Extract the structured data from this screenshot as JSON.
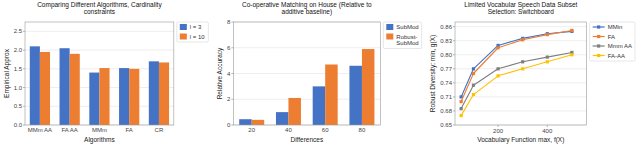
{
  "chart_data": [
    {
      "type": "bar",
      "title": "Comparing Different Algorithms, Cardinality\nconstraints",
      "xlabel": "Algorithms",
      "ylabel": "Empirical Approx",
      "categories": [
        "MMm AA",
        "FA AA",
        "MMm",
        "FA",
        "CR"
      ],
      "series": [
        {
          "name": "l = 3",
          "color": "#4472C4",
          "values": [
            2.1,
            2.05,
            1.4,
            1.52,
            1.7
          ]
        },
        {
          "name": "l = 10",
          "color": "#ED7D31",
          "values": [
            1.95,
            1.9,
            1.52,
            1.5,
            1.67
          ]
        }
      ],
      "ylim": [
        0,
        2.75
      ],
      "yticks": [
        {
          "value": 0,
          "label": "0.0"
        },
        0.5,
        {
          "value": 1,
          "label": "1.0"
        },
        1.5,
        {
          "value": 2,
          "label": "2.0"
        },
        2.5
      ],
      "grid": true,
      "legend": "right"
    },
    {
      "type": "bar",
      "title": "Co-operative Matching on House (Relative to\nadditive baseline)",
      "xlabel": "Differences",
      "ylabel": "Relative Accuracy",
      "categories": [
        "20",
        "40",
        "60",
        "80"
      ],
      "series": [
        {
          "name": "SubMod",
          "color": "#4472C4",
          "values": [
            0.45,
            1.0,
            3.0,
            4.6
          ]
        },
        {
          "name": "Robust-\nSubMod",
          "color": "#ED7D31",
          "values": [
            0.4,
            2.1,
            4.7,
            5.9
          ]
        }
      ],
      "ylim": [
        0,
        8
      ],
      "yticks": [
        0,
        2,
        4,
        6,
        8
      ],
      "grid": true,
      "legend": "right"
    },
    {
      "type": "line",
      "title": "Limited Vocabular Speech Data Subset\nSelection: Switchboard",
      "xlabel": "Vocabulary Function max, f(X)",
      "ylabel": "Robust Diversity: min, g(X)",
      "x": [
        50,
        100,
        200,
        300,
        400,
        500
      ],
      "series": [
        {
          "name": "MMin",
          "color": "#4472C4",
          "values": [
            0.71,
            0.77,
            0.82,
            0.835,
            0.845,
            0.85
          ]
        },
        {
          "name": "FA",
          "color": "#ED7D31",
          "values": [
            0.7,
            0.76,
            0.815,
            0.832,
            0.843,
            0.852
          ]
        },
        {
          "name": "Mmm AA",
          "color": "#7F7F7F",
          "values": [
            0.685,
            0.735,
            0.77,
            0.785,
            0.795,
            0.805
          ]
        },
        {
          "name": "FA-AA",
          "color": "#FFC000",
          "values": [
            0.67,
            0.715,
            0.755,
            0.77,
            0.785,
            0.8
          ]
        }
      ],
      "ylim": [
        0.65,
        0.87
      ],
      "yticks": [
        0.65,
        0.68,
        0.71,
        0.74,
        0.77,
        {
          "value": 0.8,
          "label": "0.80"
        },
        0.83,
        0.86
      ],
      "xlim": [
        25,
        560
      ],
      "xticks": [
        200,
        400
      ],
      "marker": "square",
      "grid": true,
      "legend": "right"
    }
  ]
}
